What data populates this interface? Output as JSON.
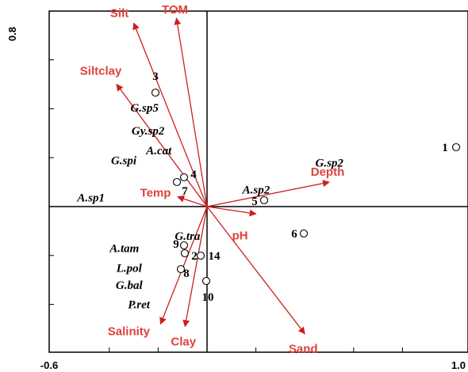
{
  "chart_data": {
    "type": "scatter",
    "title": "",
    "xlabel": "",
    "ylabel": "",
    "xlim": [
      -0.6,
      1.0
    ],
    "ylim": [
      -0.6,
      0.8
    ],
    "x_tick_labels": [
      "-0.6",
      "1.0"
    ],
    "y_tick_labels": [
      "0.8",
      ""
    ],
    "environmental_vectors": [
      {
        "name": "Silt",
        "x": -0.3,
        "y": 0.75
      },
      {
        "name": "TOM",
        "x": -0.125,
        "y": 0.77
      },
      {
        "name": "Siltclay",
        "x": -0.37,
        "y": 0.5
      },
      {
        "name": "Temp",
        "x": -0.12,
        "y": 0.04
      },
      {
        "name": "Depth",
        "x": 0.5,
        "y": 0.1
      },
      {
        "name": "pH",
        "x": 0.2,
        "y": -0.03
      },
      {
        "name": "Salinity",
        "x": -0.19,
        "y": -0.48
      },
      {
        "name": "Clay",
        "x": -0.09,
        "y": -0.49
      },
      {
        "name": "Sand",
        "x": 0.4,
        "y": -0.52
      }
    ],
    "species": [
      {
        "name": "G.sp5",
        "x": -0.23,
        "y": 0.44
      },
      {
        "name": "Gy.sp2",
        "x": -0.17,
        "y": 0.34
      },
      {
        "name": "A.cat",
        "x": -0.09,
        "y": 0.22
      },
      {
        "name": "G.spi",
        "x": -0.25,
        "y": 0.14
      },
      {
        "name": "A.sp1",
        "x": -0.41,
        "y": 0.03
      },
      {
        "name": "G.sp2",
        "x": 0.53,
        "y": 0.18
      },
      {
        "name": "A.sp2",
        "x": 0.24,
        "y": 0.07
      },
      {
        "name": "G.tra",
        "x": -0.08,
        "y": -0.12
      },
      {
        "name": "A.tam",
        "x": -0.28,
        "y": -0.17
      },
      {
        "name": "L.pol",
        "x": -0.28,
        "y": -0.25
      },
      {
        "name": "G.bal",
        "x": -0.28,
        "y": -0.32
      },
      {
        "name": "P.ret",
        "x": -0.24,
        "y": -0.4
      }
    ],
    "sites": [
      {
        "name": "1",
        "x": 1.03,
        "y": 0.24
      },
      {
        "name": "3",
        "x": -0.21,
        "y": 0.47
      },
      {
        "name": "4",
        "x": -0.09,
        "y": 0.12
      },
      {
        "name": "7",
        "x": -0.12,
        "y": 0.1
      },
      {
        "name": "5",
        "x": 0.24,
        "y": 0.03
      },
      {
        "name": "6",
        "x": 0.4,
        "y": -0.12
      },
      {
        "name": "9",
        "x": -0.09,
        "y": -0.16
      },
      {
        "name": "2",
        "x": -0.09,
        "y": -0.19
      },
      {
        "name": "14",
        "x": -0.02,
        "y": -0.2
      },
      {
        "name": "8",
        "x": -0.1,
        "y": -0.26
      },
      {
        "name": "10",
        "x": 0.01,
        "y": -0.31
      }
    ]
  }
}
